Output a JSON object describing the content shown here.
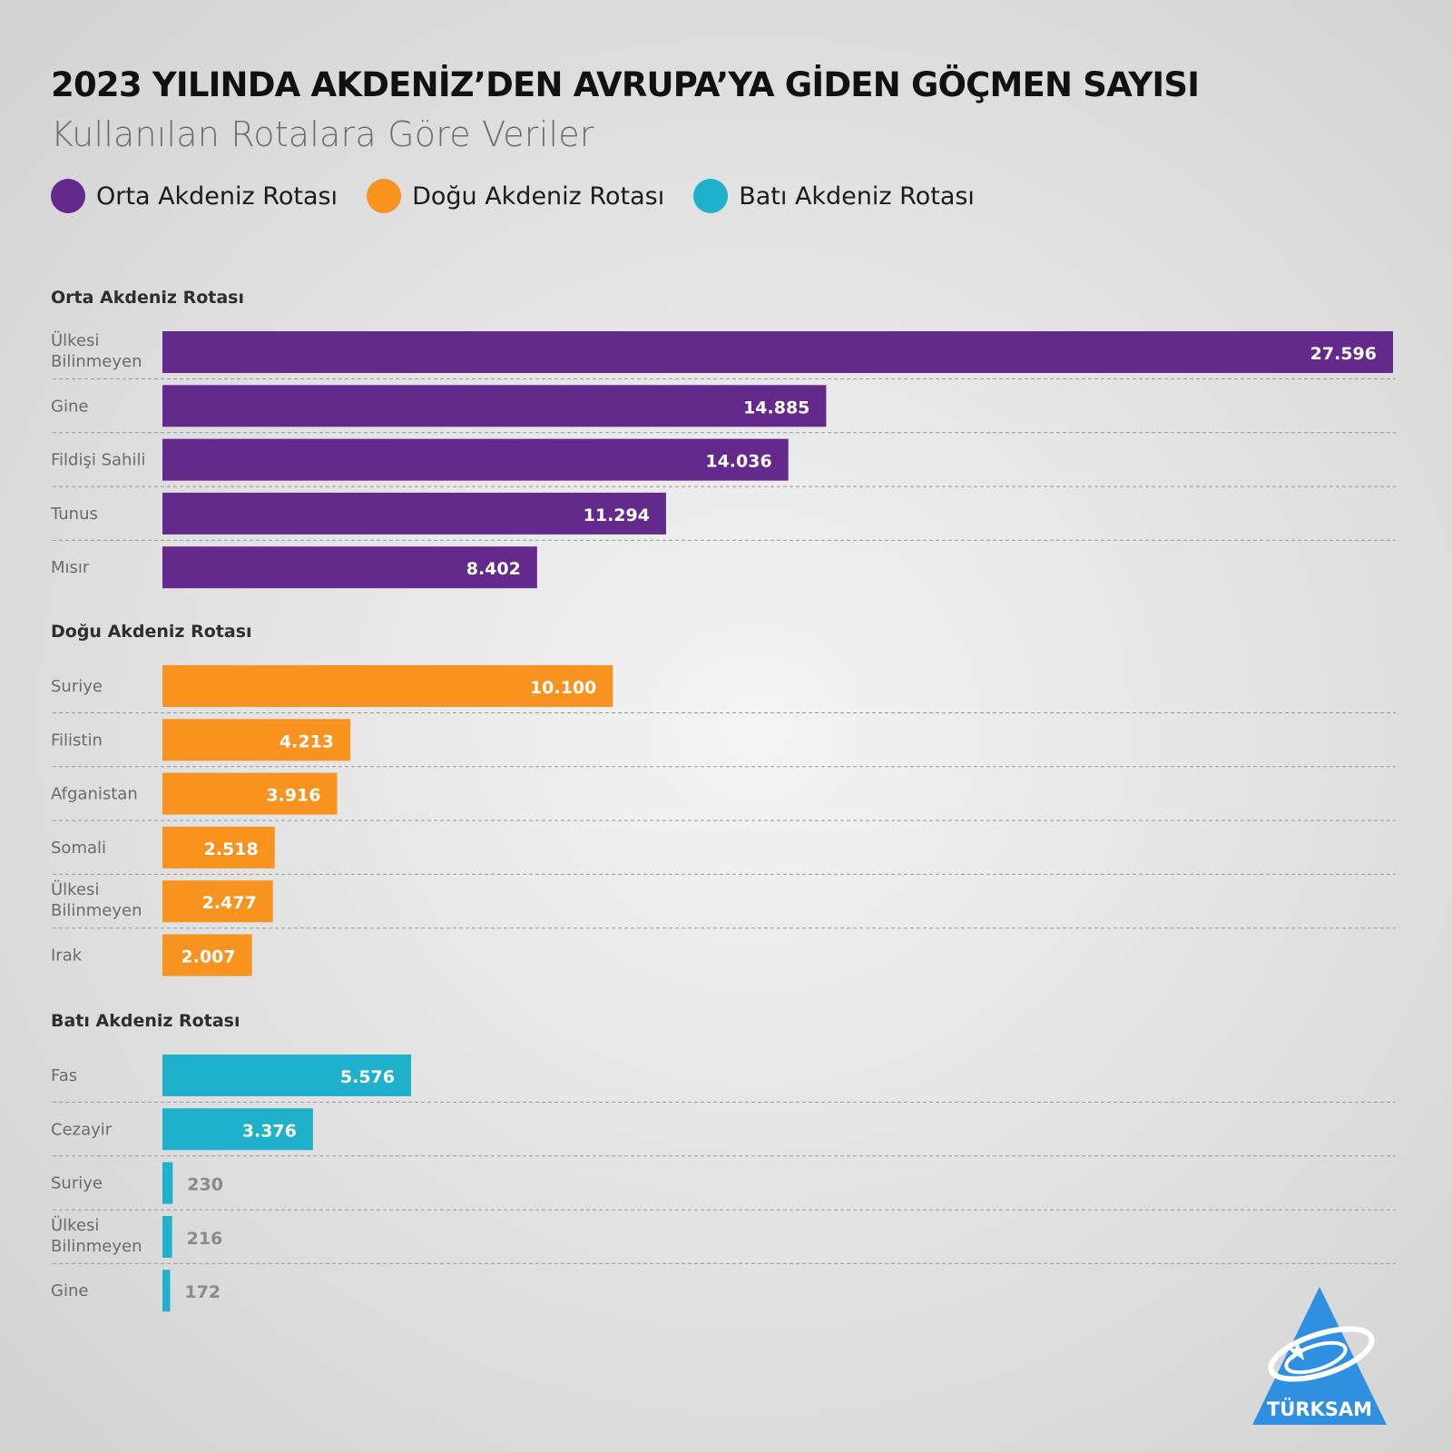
{
  "title": "2023 YILINDA AKDENİZ’DEN AVRUPA’YA GİDEN GÖÇMEN SAYISI",
  "subtitle": "Kullanılan Rotalara Göre Veriler",
  "legend": [
    {
      "label": "Orta Akdeniz Rotası",
      "color": "#632a8c"
    },
    {
      "label": "Doğu Akdeniz Rotası",
      "color": "#f7931e"
    },
    {
      "label": "Batı Akdeniz Rotası",
      "color": "#1fb0cb"
    }
  ],
  "logo": {
    "text": "TÜRKSAM",
    "color": "#2f8fe0"
  },
  "chart_data": {
    "type": "bar",
    "orientation": "horizontal",
    "value_max": 27596,
    "groups": [
      {
        "title": "Orta Akdeniz Rotası",
        "color": "#632a8c",
        "categories": [
          "Ülkesi Bilinmeyen",
          "Gine",
          "Fildişi Sahili",
          "Tunus",
          "Mısır"
        ],
        "values": [
          27596,
          14885,
          14036,
          11294,
          8402
        ],
        "value_labels": [
          "27.596",
          "14.885",
          "14.036",
          "11.294",
          "8.402"
        ]
      },
      {
        "title": "Doğu Akdeniz Rotası",
        "color": "#f7931e",
        "categories": [
          "Suriye",
          "Filistin",
          "Afganistan",
          "Somali",
          "Ülkesi Bilinmeyen",
          "Irak"
        ],
        "values": [
          10100,
          4213,
          3916,
          2518,
          2477,
          2007
        ],
        "value_labels": [
          "10.100",
          "4.213",
          "3.916",
          "2.518",
          "2.477",
          "2.007"
        ]
      },
      {
        "title": "Batı Akdeniz Rotası",
        "color": "#1fb0cb",
        "categories": [
          "Fas",
          "Cezayir",
          "Suriye",
          "Ülkesi Bilinmeyen",
          "Gine"
        ],
        "values": [
          5576,
          3376,
          230,
          216,
          172
        ],
        "value_labels": [
          "5.576",
          "3.376",
          "230",
          "216",
          "172"
        ]
      }
    ]
  }
}
